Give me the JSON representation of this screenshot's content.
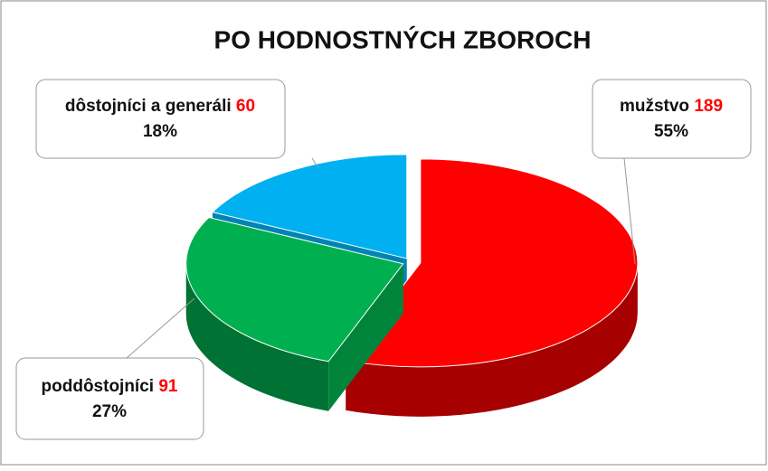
{
  "chart_data": {
    "type": "pie",
    "title": "PO HODNOSTNÝCH ZBOROCH",
    "categories": [
      "mužstvo",
      "poddôstojníci",
      "dôstojníci a generáli"
    ],
    "values": [
      189,
      91,
      60
    ],
    "percent_labels": [
      "55%",
      "27%",
      "18%"
    ],
    "colors": [
      "#ff0000",
      "#00b050",
      "#00b0f0"
    ]
  }
}
